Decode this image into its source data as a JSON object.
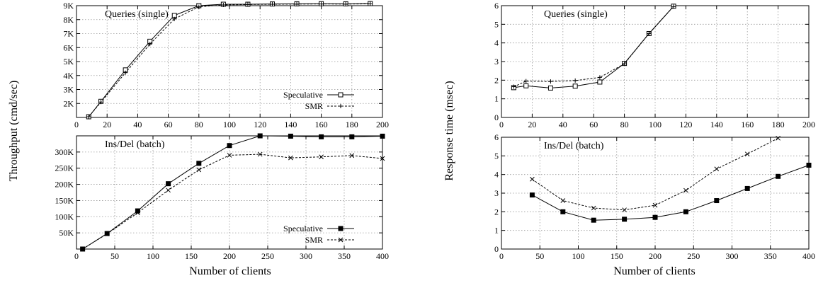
{
  "figure": {
    "left_ylabel": "Throughput (cmd/sec)",
    "right_ylabel": "Response time (msec)",
    "left_xlabel": "Number of clients",
    "right_xlabel": "Number of clients"
  },
  "chart_data": [
    {
      "type": "line",
      "title": "Queries (single)",
      "xlim": [
        0,
        200
      ],
      "ylim": [
        1000,
        9000
      ],
      "xticks": [
        0,
        20,
        40,
        60,
        80,
        100,
        120,
        140,
        160,
        180,
        200
      ],
      "xtick_labels": [
        "0",
        "20",
        "40",
        "60",
        "80",
        "100",
        "120",
        "140",
        "160",
        "180",
        "200"
      ],
      "yticks": [
        2000,
        3000,
        4000,
        5000,
        6000,
        7000,
        8000,
        9000
      ],
      "ytick_labels": [
        "2K",
        "3K",
        "4K",
        "5K",
        "6K",
        "7K",
        "8K",
        "9K"
      ],
      "legend": "bottom-right",
      "series": [
        {
          "name": "Speculative",
          "style": "solid",
          "marker": "square-open",
          "x": [
            8,
            16,
            32,
            48,
            64,
            80,
            96,
            112,
            128,
            144,
            160,
            176,
            192
          ],
          "y": [
            1050,
            2150,
            4400,
            6450,
            8300,
            9000,
            9100,
            9100,
            9120,
            9130,
            9140,
            9130,
            9150
          ]
        },
        {
          "name": "SMR",
          "style": "dashed",
          "marker": "plus",
          "x": [
            8,
            16,
            32,
            48,
            64,
            80,
            96,
            112,
            128,
            144,
            160,
            176,
            192
          ],
          "y": [
            1050,
            2100,
            4200,
            6250,
            8050,
            8920,
            9050,
            9080,
            9100,
            9110,
            9120,
            9110,
            9130
          ]
        }
      ]
    },
    {
      "type": "line",
      "title": "Ins/Del (batch)",
      "xlim": [
        0,
        400
      ],
      "ylim": [
        0,
        350000
      ],
      "xticks": [
        0,
        50,
        100,
        150,
        200,
        250,
        300,
        350,
        400
      ],
      "xtick_labels": [
        "0",
        "50",
        "100",
        "150",
        "200",
        "250",
        "300",
        "350",
        "400"
      ],
      "yticks": [
        50000,
        100000,
        150000,
        200000,
        250000,
        300000
      ],
      "ytick_labels": [
        "50K",
        "100K",
        "150K",
        "200K",
        "250K",
        "300K"
      ],
      "legend": "bottom-right",
      "series": [
        {
          "name": "Speculative",
          "style": "solid",
          "marker": "square-filled",
          "x": [
            8,
            40,
            80,
            120,
            160,
            200,
            240,
            280,
            320,
            360,
            400
          ],
          "y": [
            0,
            48000,
            118000,
            202000,
            265000,
            320000,
            350000,
            349000,
            347000,
            347000,
            349000
          ]
        },
        {
          "name": "SMR",
          "style": "dashed",
          "marker": "x",
          "x": [
            8,
            40,
            80,
            120,
            160,
            200,
            240,
            280,
            320,
            360,
            400
          ],
          "y": [
            0,
            47000,
            112000,
            182000,
            245000,
            290000,
            293000,
            282000,
            285000,
            289000,
            280000
          ]
        }
      ]
    },
    {
      "type": "line",
      "title": "Queries (single)",
      "xlim": [
        0,
        200
      ],
      "ylim": [
        0,
        6
      ],
      "xticks": [
        0,
        20,
        40,
        60,
        80,
        100,
        120,
        140,
        160,
        180,
        200
      ],
      "xtick_labels": [
        "0",
        "20",
        "40",
        "60",
        "80",
        "100",
        "120",
        "140",
        "160",
        "180",
        "200"
      ],
      "yticks": [
        0,
        1,
        2,
        3,
        4,
        5,
        6
      ],
      "ytick_labels": [
        "0",
        "1",
        "2",
        "3",
        "4",
        "5",
        "6"
      ],
      "series": [
        {
          "name": "Speculative",
          "style": "solid",
          "marker": "square-open",
          "x": [
            8,
            16,
            32,
            48,
            64,
            80,
            96,
            112
          ],
          "y": [
            1.6,
            1.7,
            1.58,
            1.68,
            1.9,
            2.9,
            4.5,
            5.97
          ]
        },
        {
          "name": "SMR",
          "style": "dashed",
          "marker": "plus",
          "x": [
            8,
            16,
            32,
            48,
            64,
            80,
            96,
            112
          ],
          "y": [
            1.65,
            1.95,
            1.93,
            1.98,
            2.15,
            2.88,
            4.5,
            5.95
          ]
        }
      ]
    },
    {
      "type": "line",
      "title": "Ins/Del (batch)",
      "xlim": [
        0,
        400
      ],
      "ylim": [
        0,
        6
      ],
      "xticks": [
        0,
        50,
        100,
        150,
        200,
        250,
        300,
        350,
        400
      ],
      "xtick_labels": [
        "0",
        "50",
        "100",
        "150",
        "200",
        "250",
        "300",
        "350",
        "400"
      ],
      "yticks": [
        0,
        1,
        2,
        3,
        4,
        5,
        6
      ],
      "ytick_labels": [
        "0",
        "1",
        "2",
        "3",
        "4",
        "5",
        "6"
      ],
      "series": [
        {
          "name": "Speculative",
          "style": "solid",
          "marker": "square-filled",
          "x": [
            40,
            80,
            120,
            160,
            200,
            240,
            280,
            320,
            360,
            400
          ],
          "y": [
            2.9,
            2.0,
            1.55,
            1.6,
            1.7,
            2.0,
            2.6,
            3.25,
            3.9,
            4.5
          ]
        },
        {
          "name": "SMR",
          "style": "dashed",
          "marker": "x",
          "x": [
            40,
            80,
            120,
            160,
            200,
            240,
            280,
            320,
            360
          ],
          "y": [
            3.75,
            2.6,
            2.2,
            2.1,
            2.35,
            3.15,
            4.3,
            5.1,
            5.95
          ]
        }
      ]
    }
  ]
}
